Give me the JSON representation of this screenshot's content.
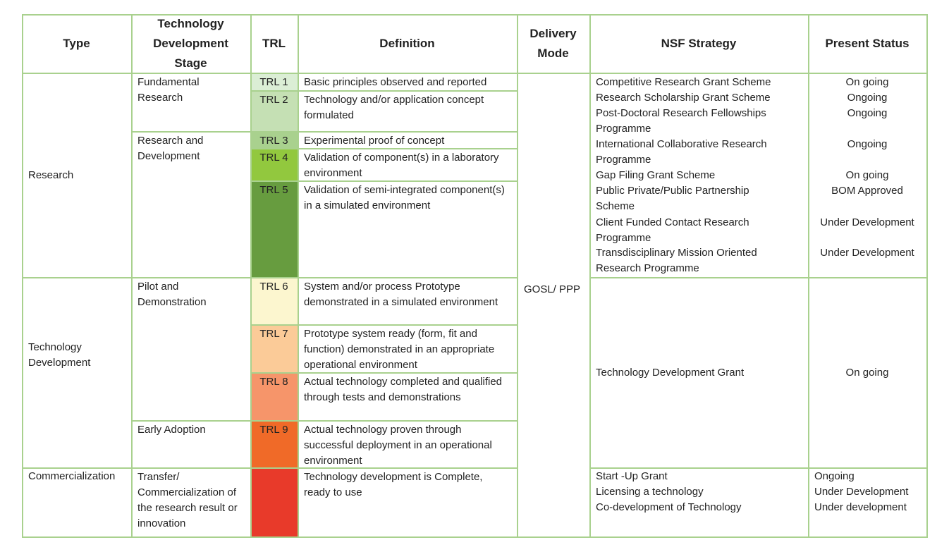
{
  "table": {
    "headers": [
      "Type",
      "Technology Development Stage",
      "TRL",
      "Definition",
      "Delivery Mode",
      "NSF Strategy",
      "Present Status"
    ],
    "types": [
      "Research",
      "Technology Development",
      "Commercialization"
    ],
    "stages": [
      "Fundamental Research",
      "Research and Development",
      "Pilot and Demonstration",
      "Early Adoption",
      "Transfer/ Commercialization of the research result or innovation"
    ],
    "trl": [
      {
        "label": "TRL 1",
        "definition": "Basic principles observed and reported",
        "color": "#dbeed5"
      },
      {
        "label": "TRL 2",
        "definition": "Technology and/or application concept formulated",
        "color": "#c5e0b4"
      },
      {
        "label": "TRL 3",
        "definition": "Experimental proof of concept",
        "color": "#a9d18e"
      },
      {
        "label": "TRL 4",
        "definition": "Validation of component(s) in a laboratory environment",
        "color": "#92c83e"
      },
      {
        "label": "TRL 5",
        "definition": "Validation of semi-integrated component(s) in a simulated environment",
        "color": "#679c3f"
      },
      {
        "label": "TRL 6",
        "definition": "System and/or process Prototype demonstrated in a simulated environment",
        "color": "#fcf6cf"
      },
      {
        "label": "TRL 7",
        "definition": "Prototype system ready (form, fit and function) demonstrated in an appropriate operational environment",
        "color": "#fbcb98"
      },
      {
        "label": "TRL 8",
        "definition": "Actual technology completed and qualified through tests and demonstrations",
        "color": "#f6956a"
      },
      {
        "label": "TRL 9",
        "definition": "Actual technology proven through successful deployment in an operational environment",
        "color": "#f06a28"
      },
      {
        "definition": "Technology development is Complete, ready to use",
        "color": "#e83a2a"
      }
    ],
    "delivery_mode": "GOSL/ PPP",
    "research_strategies": [
      {
        "strategy": "Competitive Research Grant Scheme",
        "status": "On going"
      },
      {
        "strategy": "Research Scholarship Grant Scheme",
        "status": "Ongoing"
      },
      {
        "strategy": "Post-Doctoral Research Fellowships Programme",
        "status": "Ongoing"
      },
      {
        "strategy": "International Collaborative Research Programme",
        "status": "Ongoing"
      },
      {
        "strategy": "Gap Filing Grant Scheme",
        "status": "On going"
      },
      {
        "strategy": "Public Private/Public Partnership Scheme",
        "status": "BOM Approved"
      },
      {
        "strategy": "Client Funded Contact Research Programme",
        "status": "Under Development"
      },
      {
        "strategy": "Transdisciplinary Mission Oriented Research Programme",
        "status": "Under Development"
      }
    ],
    "development_strategies": [
      {
        "strategy": "Technology Development Grant",
        "status": "On going"
      }
    ],
    "commercialization_strategies": [
      {
        "strategy": "Start -Up Grant",
        "status": "Ongoing"
      },
      {
        "strategy": "Licensing a technology",
        "status": "Under Development"
      },
      {
        "strategy": "Co-development of Technology",
        "status": "Under development"
      }
    ]
  }
}
